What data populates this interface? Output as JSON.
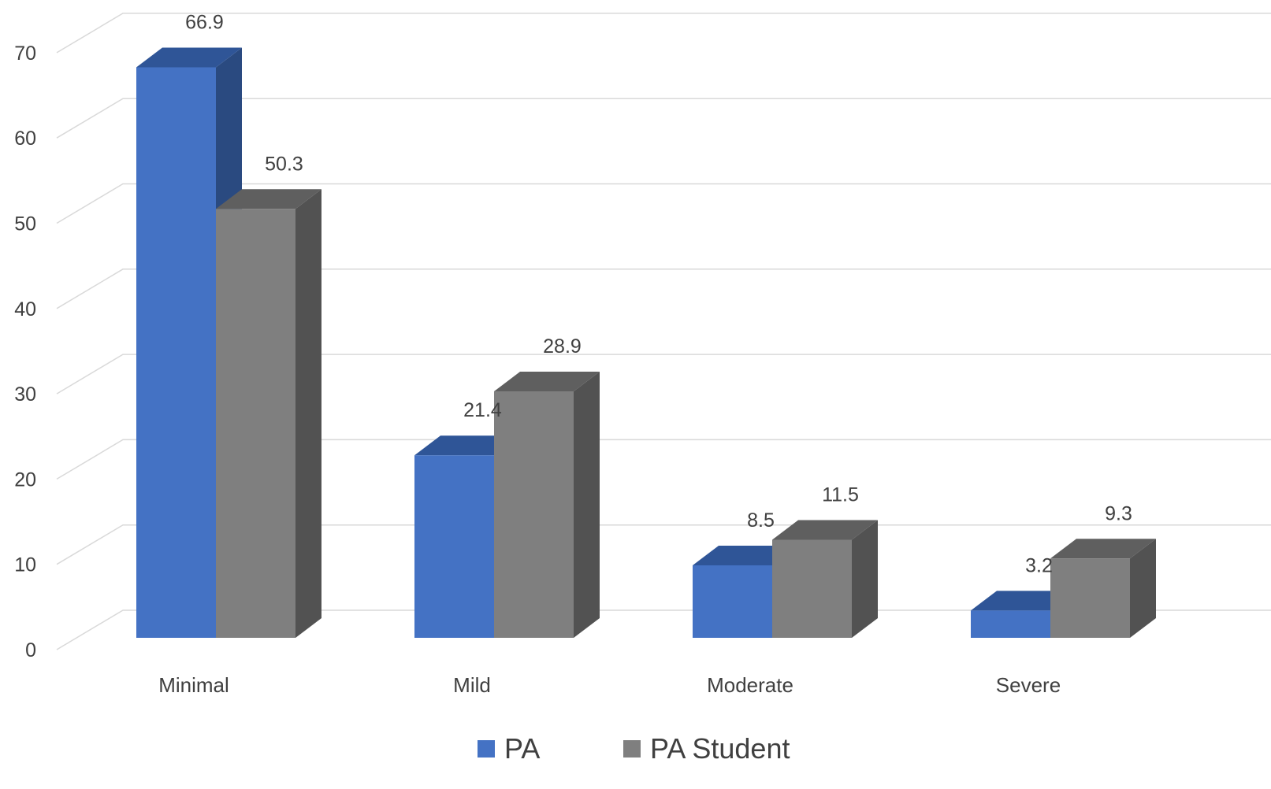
{
  "chart_data": {
    "type": "bar",
    "style": "3d-clustered-column",
    "title": "",
    "xlabel": "",
    "ylabel": "",
    "categories": [
      "Minimal",
      "Mild",
      "Moderate",
      "Severe"
    ],
    "series": [
      {
        "name": "PA",
        "values": [
          66.9,
          21.4,
          8.5,
          3.2
        ],
        "color": "#4472C4",
        "top_color": "#2F5597",
        "side_color": "#2A4A80"
      },
      {
        "name": "PA Student",
        "values": [
          50.3,
          28.9,
          11.5,
          9.3
        ],
        "color": "#7F7F7F",
        "top_color": "#5F5F5F",
        "side_color": "#525252"
      }
    ],
    "y_ticks": [
      "0",
      "10",
      "20",
      "30",
      "40",
      "50",
      "60",
      "70"
    ],
    "data_labels": [
      [
        "66.9",
        "21.4",
        "8.5",
        "3.2"
      ],
      [
        "50.3",
        "28.9",
        "11.5",
        "9.3"
      ]
    ],
    "ylim": [
      0,
      70
    ],
    "grid": true,
    "legend_position": "bottom",
    "gridline_color": "#D9D9D9",
    "text_color": "#404040"
  }
}
